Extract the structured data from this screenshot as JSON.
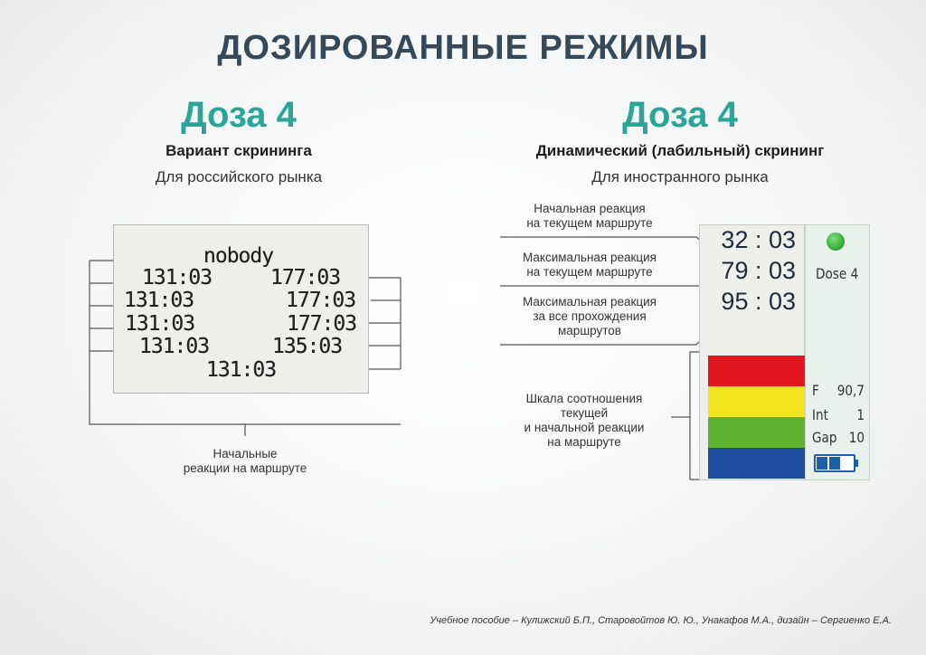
{
  "title": "ДОЗИРОВАННЫЕ РЕЖИМЫ",
  "left": {
    "dose": "Доза 4",
    "subtitle": "Вариант скрининга",
    "market": "Для российского рынка",
    "screen": {
      "name": "nobody",
      "left_values": [
        "131:03",
        "131:03",
        "131:03",
        "131:03"
      ],
      "right_values": [
        "177:03",
        "177:03",
        "177:03",
        "135:03"
      ],
      "bottom_value": "131:03"
    },
    "label_line1": "Начальные",
    "label_line2": "реакции на маршруте"
  },
  "right": {
    "dose": "Доза 4",
    "subtitle": "Динамический (лабильный) скрининг",
    "market": "Для иностранного рынка",
    "labels": [
      [
        "Начальная реакция",
        "на текущем маршруте"
      ],
      [
        "Максимальная реакция",
        "на текущем маршруте"
      ],
      [
        "Максимальная реакция",
        "за все прохождения",
        "маршрутов"
      ],
      [
        "Шкала соотношения",
        "текущей",
        "и начальной реакции",
        "на  маршруте"
      ]
    ],
    "values": [
      "32 : 03",
      "79 : 03",
      "95 : 03"
    ],
    "dose_label": "Dose 4",
    "indicator_color": "#3cae3c",
    "scale_colors": [
      "#e3171f",
      "#f2e51f",
      "#5db32f",
      "#1f4e9e"
    ],
    "params": [
      {
        "k": "F",
        "v": "90,7"
      },
      {
        "k": "Int",
        "v": "1"
      },
      {
        "k": "Gap",
        "v": "10"
      }
    ],
    "battery_level": 0.67
  },
  "footer": "Учебное пособие – Кулижский Б.П., Старовойтов Ю. Ю., Унакафов М.А.,  дизайн – Сергиенко Е.А."
}
